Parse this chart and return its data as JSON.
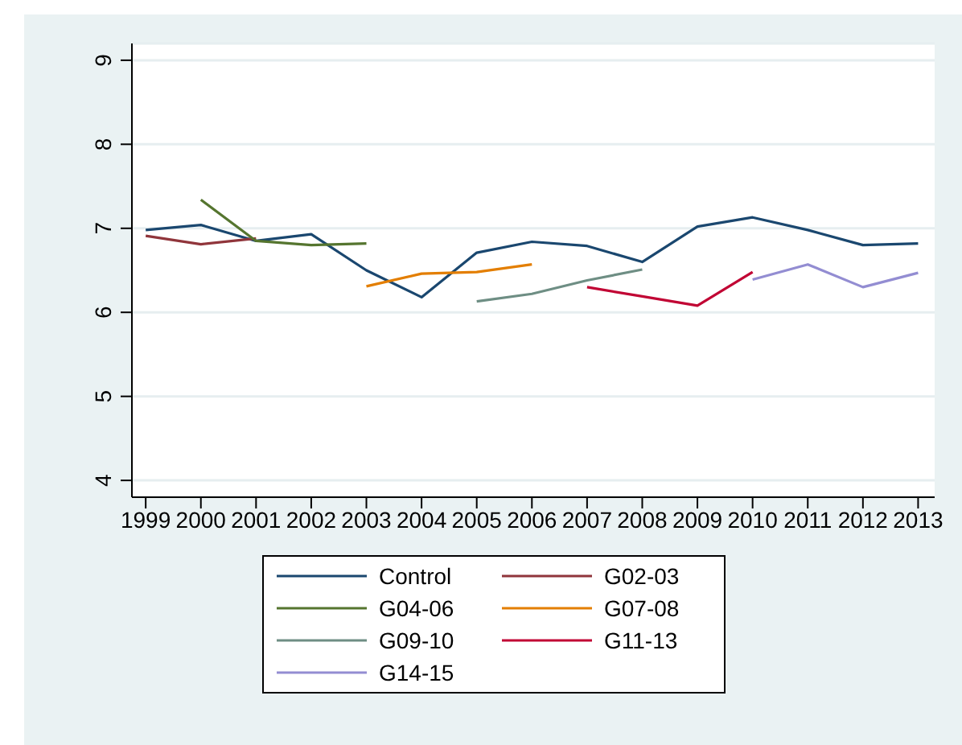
{
  "chart_data": {
    "type": "line",
    "x": [
      1999,
      2000,
      2001,
      2002,
      2003,
      2004,
      2005,
      2006,
      2007,
      2008,
      2009,
      2010,
      2011,
      2012,
      2013
    ],
    "series": [
      {
        "name": "Control",
        "color": "#1a476f",
        "values": [
          6.98,
          7.04,
          6.85,
          6.93,
          6.5,
          6.18,
          6.71,
          6.84,
          6.79,
          6.6,
          7.02,
          7.13,
          6.98,
          6.8,
          6.82
        ]
      },
      {
        "name": "G02-03",
        "color": "#90353b",
        "values": [
          6.91,
          6.81,
          6.88,
          null,
          null,
          null,
          null,
          null,
          null,
          null,
          null,
          null,
          null,
          null,
          null
        ]
      },
      {
        "name": "G04-06",
        "color": "#55752f",
        "values": [
          null,
          7.34,
          6.85,
          6.8,
          6.82,
          null,
          null,
          null,
          null,
          null,
          null,
          null,
          null,
          null,
          null
        ]
      },
      {
        "name": "G07-08",
        "color": "#e37e00",
        "values": [
          null,
          null,
          null,
          null,
          6.31,
          6.46,
          6.48,
          6.57,
          null,
          null,
          null,
          null,
          null,
          null,
          null
        ]
      },
      {
        "name": "G09-10",
        "color": "#6e8e84",
        "values": [
          null,
          null,
          null,
          null,
          null,
          null,
          6.13,
          6.22,
          6.38,
          6.51,
          null,
          null,
          null,
          null,
          null
        ]
      },
      {
        "name": "G11-13",
        "color": "#c10534",
        "values": [
          null,
          null,
          null,
          null,
          null,
          null,
          null,
          null,
          6.3,
          6.19,
          6.08,
          6.48,
          null,
          null,
          null
        ]
      },
      {
        "name": "G14-15",
        "color": "#938dd2",
        "values": [
          null,
          null,
          null,
          null,
          null,
          null,
          null,
          null,
          null,
          null,
          null,
          6.39,
          6.57,
          6.3,
          6.47
        ]
      }
    ],
    "xlim": [
      1998.75,
      2013.3
    ],
    "xticks": [
      1999,
      2000,
      2001,
      2002,
      2003,
      2004,
      2005,
      2006,
      2007,
      2008,
      2009,
      2010,
      2011,
      2012,
      2013
    ],
    "ylim": [
      3.8,
      9.2
    ],
    "yticks": [
      4,
      5,
      6,
      7,
      8,
      9
    ],
    "grid": "y",
    "legend": "bottom",
    "marker": "none",
    "line_style": "solid"
  }
}
